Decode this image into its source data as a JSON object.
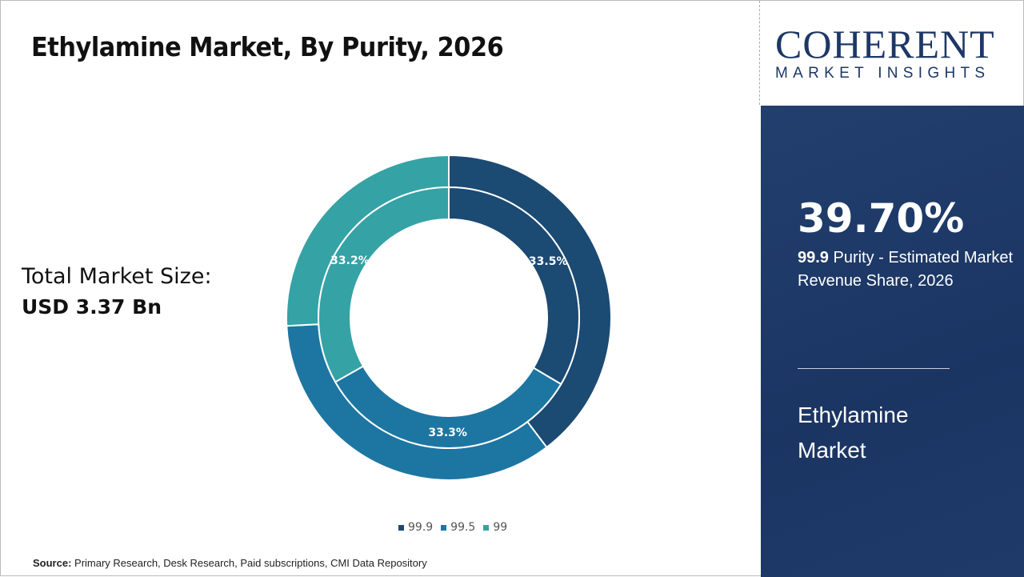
{
  "title": "Ethylamine Market, By Purity, 2026",
  "total": {
    "label": "Total Market Size:",
    "value": "USD 3.37 Bn"
  },
  "source": {
    "label": "Source:",
    "text": " Primary Research, Desk Research, Paid subscriptions, CMI Data Repository"
  },
  "logo": {
    "top": "COHERENT",
    "bottom": "MARKET INSIGHTS"
  },
  "panel": {
    "percent": "39.70%",
    "desc_bold": "99.9",
    "desc": " Purity - Estimated Market Revenue Share, 2026",
    "market": "Ethylamine Market"
  },
  "chart_data": {
    "type": "pie",
    "subtype": "double-donut",
    "categories": [
      "99.9",
      "99.5",
      "99"
    ],
    "colors": [
      "#1b4a73",
      "#1d76a1",
      "#35a2a6"
    ],
    "series": [
      {
        "name": "outer",
        "values": [
          39.7,
          34.5,
          25.8
        ]
      },
      {
        "name": "inner",
        "values": [
          33.5,
          33.3,
          33.2
        ],
        "labels": [
          "33.5%",
          "33.3%",
          "33.2%"
        ]
      }
    ],
    "legend_placement": "bottom"
  }
}
